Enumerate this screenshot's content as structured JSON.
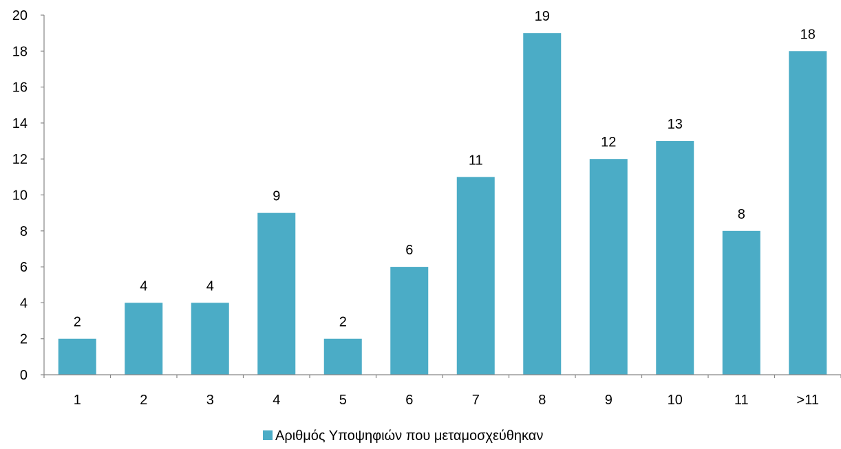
{
  "chart_data": {
    "type": "bar",
    "categories": [
      "1",
      "2",
      "3",
      "4",
      "5",
      "6",
      "7",
      "8",
      "9",
      "10",
      "11",
      ">11"
    ],
    "series": [
      {
        "name": "Αριθμός Υποψηφιών που μεταμοσχεύθηκαν",
        "values": [
          2,
          4,
          4,
          9,
          2,
          6,
          11,
          19,
          12,
          13,
          8,
          18
        ],
        "color": "#4BACC6"
      }
    ],
    "title": "",
    "xlabel": "",
    "ylabel": "",
    "ylim": [
      0,
      20
    ],
    "yticks": [
      0,
      2,
      4,
      6,
      8,
      10,
      12,
      14,
      16,
      18,
      20
    ],
    "grid": false,
    "data_labels": true,
    "legend_position": "bottom",
    "axis_color": "#868686"
  }
}
